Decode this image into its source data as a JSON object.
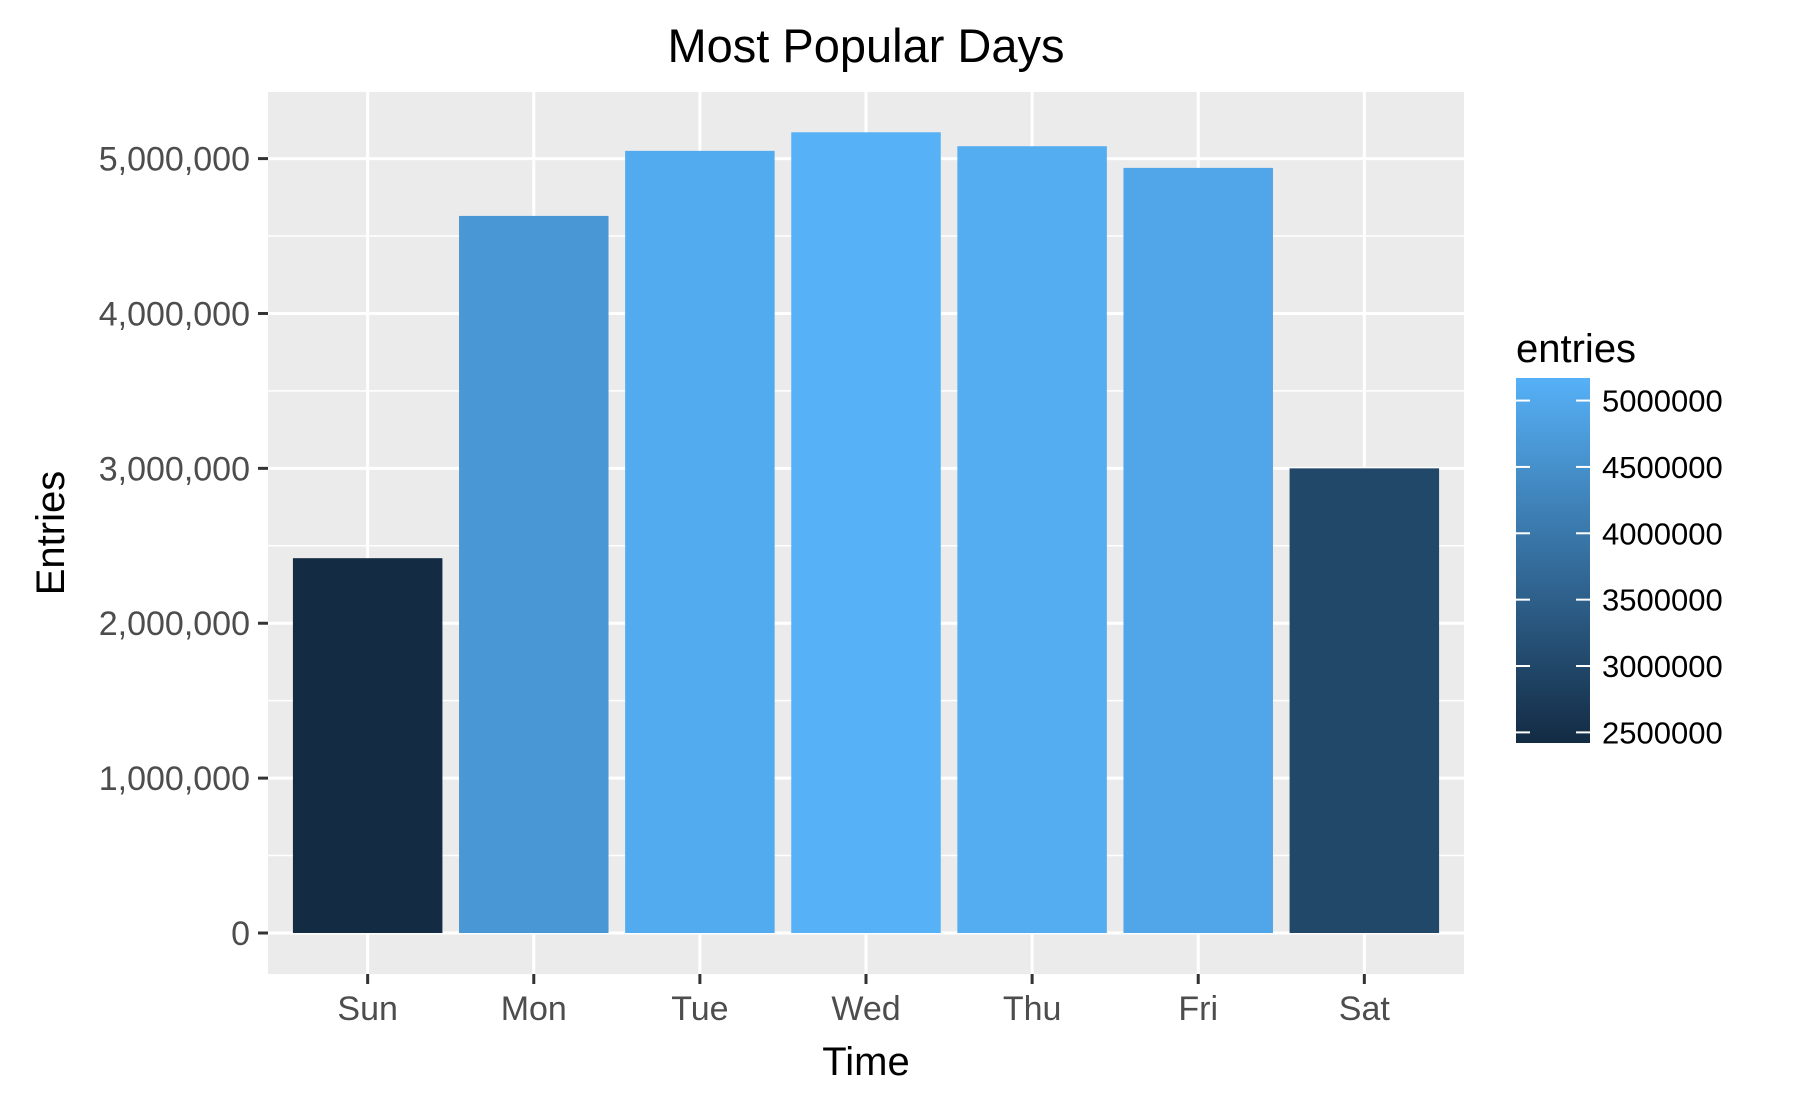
{
  "chart_data": {
    "type": "bar",
    "title": "Most Popular Days",
    "xlabel": "Time",
    "ylabel": "Entries",
    "categories": [
      "Sun",
      "Mon",
      "Tue",
      "Wed",
      "Thu",
      "Fri",
      "Sat"
    ],
    "values": [
      2420000,
      4630000,
      5050000,
      5170000,
      5080000,
      4940000,
      3000000
    ],
    "ylim": [
      0,
      5430000
    ],
    "y_ticks": [
      0,
      1000000,
      2000000,
      3000000,
      4000000,
      5000000
    ],
    "y_tick_labels": [
      "0",
      "1,000,000",
      "2,000,000",
      "3,000,000",
      "4,000,000",
      "5,000,000"
    ],
    "grid": true,
    "panel_background": "#ebebeb",
    "grid_color": "#ffffff",
    "legend": {
      "title": "entries",
      "placement": "right",
      "type": "colorbar",
      "range": [
        2420000,
        5170000
      ],
      "breaks": [
        2500000,
        3000000,
        3500000,
        4000000,
        4500000,
        5000000
      ],
      "break_labels": [
        "2500000",
        "3000000",
        "3500000",
        "4000000",
        "4500000",
        "5000000"
      ],
      "low_color": "#132b43",
      "high_color": "#56b1f7"
    }
  }
}
